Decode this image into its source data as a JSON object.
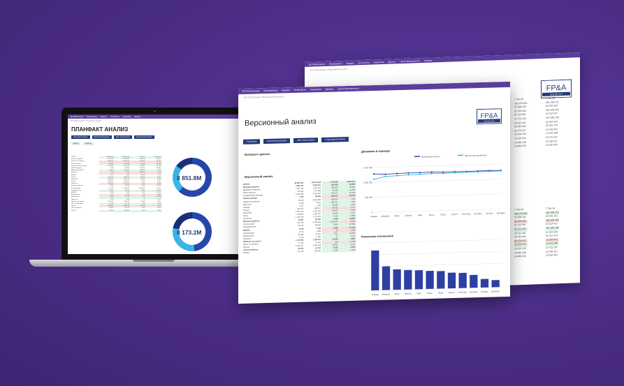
{
  "app": {
    "brand": "ЕП FP&A Gemini",
    "nav": [
      "Инструменты",
      "Модели",
      "Отчётность",
      "Аналитика",
      "Данные",
      "Центр безопасности",
      "Справка"
    ],
    "logo_text": "FP&A",
    "logo_sub": "G E M I N I"
  },
  "laptop": {
    "title": "ПЛАНФАКТ АНАЛИЗ",
    "breadcrumb": "ЕП FP&A Gemini / План-факт анализ",
    "buttons": [
      "План-факт анализ",
      "Версионный анализ",
      "Факт-план анализ",
      "Структурный анализ"
    ],
    "tabs": [
      "Месяц",
      "Период"
    ],
    "donut1_value": "8 851.8M",
    "donut2_value": "8 173.2M",
    "colors": {
      "donut_primary": "#2548a8",
      "donut_secondary": "#39b4e6"
    }
  },
  "front": {
    "title": "Версионный анализ",
    "breadcrumb": "ЕП FP&A Gemini / Версионный анализ",
    "buttons": [
      "Структура",
      "Версионный анализ",
      "Факт-план анализ",
      "Структурный анализ"
    ],
    "section_versions": "Выберите данные",
    "section_table": "Версионный анализ",
    "section_dynamics": "Динамика в периоде",
    "section_deviation": "Изменение отклонения",
    "legend": [
      "Выбранная версия",
      "Версия для сравнения"
    ],
    "table_rows": [
      {
        "label": "ИТОГИ",
        "v": [
          "36 691 551",
          "39 001 918",
          "7 079 553",
          "5 015 471"
        ],
        "bold": true
      },
      {
        "label": "Валовая выручка",
        "v": [
          "2 261 911",
          "2 332 957",
          "454 930",
          "50 099"
        ],
        "bold": true
      },
      {
        "label": "Денежные средства",
        "v": [
          "1 627 115",
          "1 670 112",
          "158 924",
          "46 200"
        ]
      },
      {
        "label": "Себестоимость",
        "v": [
          "515 641",
          "576 108",
          "63 118",
          "11 254"
        ]
      },
      {
        "label": "Коммерческие расходы",
        "v": [
          "1 136 901",
          "1 197 410",
          "126 471",
          "41 128"
        ]
      },
      {
        "label": "Прочие доходы",
        "v": [
          "7 184",
          "46 094",
          "-192 611",
          "-18 441"
        ],
        "bold": true
      },
      {
        "label": "Административные",
        "v": [
          "13 110",
          "2 418 005",
          "458 975",
          "7 154"
        ]
      },
      {
        "label": "Зарплата",
        "v": [
          "5 143",
          "6 411",
          "662 571",
          "7 123"
        ]
      },
      {
        "label": "Аренда",
        "v": [
          "1 117",
          "1 102",
          "44 184",
          "1 156"
        ]
      },
      {
        "label": "Налоги",
        "v": [
          "544 125",
          "484 917",
          "-36 781",
          "-6 157"
        ]
      },
      {
        "label": "Маркетинг",
        "v": [
          "1 054 271",
          "1 124 150",
          "69 879",
          "6 628"
        ]
      },
      {
        "label": "Связь",
        "v": [
          "1 744 807",
          "1 760 001",
          "15 194",
          "0 871"
        ]
      },
      {
        "label": "Логистика",
        "v": [
          "1 169 116",
          "1 172 431",
          "3 315",
          "0 284"
        ]
      },
      {
        "label": "Валовая прибыль",
        "v": [
          "12 591",
          "22 084",
          "5 493",
          "43 629"
        ],
        "bold": true
      },
      {
        "label": "Консультации",
        "v": [
          "147 181",
          "4 700 644",
          "4 553 463",
          "-2 051"
        ]
      },
      {
        "label": "Операционные",
        "v": [
          "41 141",
          "48 104",
          "6 963",
          "16 924"
        ]
      },
      {
        "label": "EBITDA",
        "v": [
          "8 744",
          "7 192",
          "-1 552",
          "-17 749"
        ],
        "bold": true
      },
      {
        "label": "Амортизация",
        "v": [
          "1 171",
          "1 082",
          "-89",
          "-7 600"
        ]
      },
      {
        "label": "Финансовые",
        "v": [
          "23 184",
          "31 115",
          "7 931",
          "34 209"
        ]
      },
      {
        "label": "Проценты",
        "v": [
          "1 125",
          "1 160",
          "35",
          "3 111"
        ]
      },
      {
        "label": "Прибыль до налога",
        "v": [
          "1 170 401",
          "1 180 441",
          "10 040",
          "0 857"
        ],
        "bold": true
      },
      {
        "label": "Налог на прибыль",
        "v": [
          "17 141",
          "17 011",
          "-130",
          "-0 758"
        ]
      },
      {
        "label": "Прочие",
        "v": [
          "1 024 117",
          "1 044 718",
          "20 601",
          "2 012"
        ]
      },
      {
        "label": "Чистая прибыль",
        "v": [
          "42 610",
          "44 712",
          "2 102",
          "4 933"
        ],
        "bold": true
      },
      {
        "label": "ИТОГО",
        "v": [
          "117 110",
          "118 404",
          "1 294",
          "1 104"
        ]
      }
    ],
    "months": [
      "Январь",
      "Февраль",
      "Март",
      "Апрель",
      "Май",
      "Июнь",
      "Июль",
      "Август",
      "Сентябрь",
      "Октябрь",
      "Ноябрь",
      "Декабрь"
    ]
  },
  "back": {
    "columns": [
      [
        "7 Тип 16",
        "151 074 811",
        "72 180 441",
        "21 670 431",
        "21 112 601",
        "17 171 121",
        "18 111 441",
        "15 410 401",
        "21 174 117",
        "14 101 414",
        "14 113 104",
        "14 001 410",
        "14 040 110"
      ],
      [
        "7 Тип 16",
        "461 108 171",
        "26 031 101",
        "101 184 441",
        "14 113 417",
        "107 183 140",
        "11 104 104",
        "25 101 174",
        "13 140 041",
        "14 101 108",
        "14 711 107",
        "12 108 117",
        "14 010 401"
      ]
    ]
  },
  "chart_data": [
    {
      "type": "line",
      "title": "Динамика в периоде",
      "x": [
        "Январь",
        "Февраль",
        "Март",
        "Апрель",
        "Май",
        "Июнь",
        "Июль",
        "Август",
        "Сентябрь",
        "Октябрь",
        "Ноябрь",
        "Декабрь"
      ],
      "series": [
        {
          "name": "Выбранная версия",
          "values": [
            1200000,
            1180000,
            1195000,
            1200000,
            1205000,
            1210000,
            1200000,
            1205000,
            1200000,
            1208000,
            1210000,
            1205000
          ]
        },
        {
          "name": "Версия для сравнения",
          "values": [
            1030000,
            1110000,
            1125000,
            1140000,
            1150000,
            1165000,
            1160000,
            1170000,
            1175000,
            1180000,
            1185000,
            1190000
          ]
        }
      ],
      "ylim": [
        0,
        1400000
      ],
      "ytick_labels": [
        "0",
        "500 000",
        "1 000 000",
        "1 250 000"
      ]
    },
    {
      "type": "bar",
      "title": "Изменение отклонения",
      "categories": [
        "Январь",
        "Февраль",
        "Март",
        "Апрель",
        "Май",
        "Июнь",
        "Июль",
        "Август",
        "Сентябрь",
        "Октябрь",
        "Ноябрь",
        "Декабрь"
      ],
      "values": [
        84,
        50,
        43,
        41,
        40,
        38,
        37,
        33,
        32,
        27,
        18,
        15
      ],
      "ylim": [
        0,
        100
      ]
    }
  ]
}
